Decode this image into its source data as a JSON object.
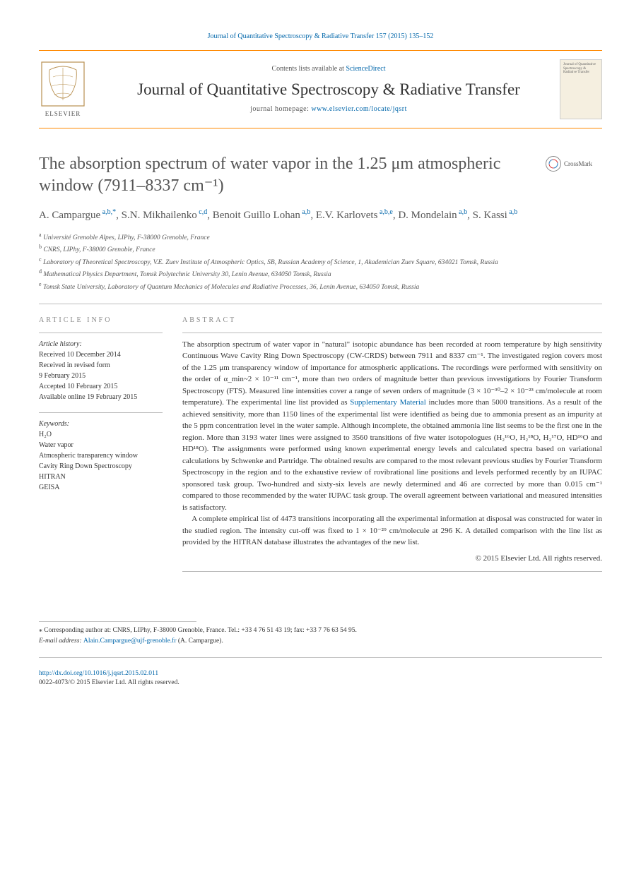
{
  "citation": "Journal of Quantitative Spectroscopy & Radiative Transfer 157 (2015) 135–152",
  "header": {
    "contents_prefix": "Contents lists available at ",
    "contents_link": "ScienceDirect",
    "journal_name": "Journal of Quantitative Spectroscopy & Radiative Transfer",
    "homepage_prefix": "journal homepage: ",
    "homepage_url": "www.elsevier.com/locate/jqsrt",
    "publisher_label": "ELSEVIER",
    "cover_text": "Journal of Quantitative Spectroscopy & Radiative Transfer"
  },
  "title": "The absorption spectrum of water vapor in the 1.25 μm atmospheric window (7911–8337 cm⁻¹)",
  "crossmark_label": "CrossMark",
  "authors_html": "A. Campargue<sup> a,b,*</sup><span class='sep'>, </span>S.N. Mikhailenko<sup> c,d</sup><span class='sep'>, </span>Benoit Guillo Lohan<sup> a,b</sup><span class='sep'>, </span>E.V. Karlovets<sup> a,b,e</sup><span class='sep'>, </span>D. Mondelain<sup> a,b</sup><span class='sep'>, </span>S. Kassi<sup> a,b</sup>",
  "affiliations": [
    {
      "key": "a",
      "text": "Université Grenoble Alpes, LIPhy, F-38000 Grenoble, France"
    },
    {
      "key": "b",
      "text": "CNRS, LIPhy, F-38000 Grenoble, France"
    },
    {
      "key": "c",
      "text": "Laboratory of Theoretical Spectroscopy, V.E. Zuev Institute of Atmospheric Optics, SB, Russian Academy of Science, 1, Akademician Zuev Square, 634021 Tomsk, Russia"
    },
    {
      "key": "d",
      "text": "Mathematical Physics Department, Tomsk Polytechnic University 30, Lenin Avenue, 634050 Tomsk, Russia"
    },
    {
      "key": "e",
      "text": "Tomsk State University, Laboratory of Quantum Mechanics of Molecules and Radiative Processes, 36, Lenin Avenue, 634050 Tomsk, Russia"
    }
  ],
  "info": {
    "heading": "article info",
    "history_label": "Article history:",
    "history": [
      "Received 10 December 2014",
      "Received in revised form",
      "9 February 2015",
      "Accepted 10 February 2015",
      "Available online 19 February 2015"
    ],
    "keywords_label": "Keywords:",
    "keywords": [
      "H₂O",
      "Water vapor",
      "Atmospheric transparency window",
      "Cavity Ring Down Spectroscopy",
      "HITRAN",
      "GEISA"
    ]
  },
  "abstract": {
    "heading": "abstract",
    "p1": "The absorption spectrum of water vapor in \"natural\" isotopic abundance has been recorded at room temperature by high sensitivity Continuous Wave Cavity Ring Down Spectroscopy (CW-CRDS) between 7911 and 8337 cm⁻¹. The investigated region covers most of the 1.25 μm transparency window of importance for atmospheric applications. The recordings were performed with sensitivity on the order of α_min~2 × 10⁻¹¹ cm⁻¹, more than two orders of magnitude better than previous investigations by Fourier Transform Spectroscopy (FTS). Measured line intensities cover a range of seven orders of magnitude (3 × 10⁻³⁰–2 × 10⁻²³ cm/molecule at room temperature). The experimental line list provided as ",
    "supp": "Supplementary Material",
    "p1b": " includes more than 5000 transitions. As a result of the achieved sensitivity, more than 1150 lines of the experimental list were identified as being due to ammonia present as an impurity at the 5 ppm concentration level in the water sample. Although incomplete, the obtained ammonia line list seems to be the first one in the region. More than 3193 water lines were assigned to 3560 transitions of five water isotopologues (H₂¹⁶O, H₂¹⁸O, H₂¹⁷O, HD¹⁶O and HD¹⁸O). The assignments were performed using known experimental energy levels and calculated spectra based on variational calculations by Schwenke and Partridge. The obtained results are compared to the most relevant previous studies by Fourier Transform Spectroscopy in the region and to the exhaustive review of rovibrational line positions and levels performed recently by an IUPAC sponsored task group. Two-hundred and sixty-six levels are newly determined and 46 are corrected by more than 0.015 cm⁻¹ compared to those recommended by the water IUPAC task group. The overall agreement between variational and measured intensities is satisfactory.",
    "p2": "A complete empirical list of 4473 transitions incorporating all the experimental information at disposal was constructed for water in the studied region. The intensity cut-off was fixed to 1 × 10⁻²⁹ cm/molecule at 296 K. A detailed comparison with the line list as provided by the HITRAN database illustrates the advantages of the new list.",
    "copyright": "© 2015 Elsevier Ltd. All rights reserved."
  },
  "footnote": {
    "star": "⁎ Corresponding author at: CNRS, LIPhy, F-38000 Grenoble, France. Tel.: +33 4 76 51 43 19; fax: +33 7 76 63 54 95.",
    "email_label": "E-mail address: ",
    "email": "Alain.Campargue@ujf-grenoble.fr",
    "email_of": " (A. Campargue)."
  },
  "footer": {
    "doi": "http://dx.doi.org/10.1016/j.jqsrt.2015.02.011",
    "issn_line": "0022-4073/© 2015 Elsevier Ltd. All rights reserved."
  },
  "colors": {
    "rule": "#ff8800",
    "link": "#0066aa",
    "text": "#333333",
    "muted": "#555555"
  }
}
